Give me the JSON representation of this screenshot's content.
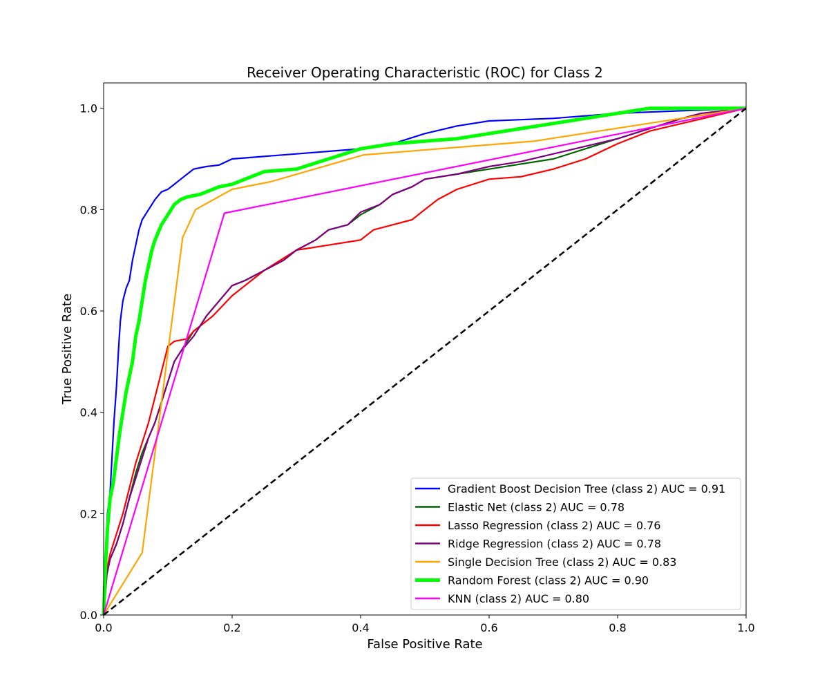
{
  "chart_data": {
    "type": "line",
    "title": "Receiver Operating Characteristic (ROC) for Class 2",
    "xlabel": "False Positive Rate",
    "ylabel": "True Positive Rate",
    "xlim": [
      0.0,
      1.0
    ],
    "ylim": [
      0.0,
      1.05
    ],
    "xticks": [
      "0.0",
      "0.2",
      "0.4",
      "0.6",
      "0.8",
      "1.0"
    ],
    "yticks": [
      "0.0",
      "0.2",
      "0.4",
      "0.6",
      "0.8",
      "1.0"
    ],
    "grid": false,
    "legend_position": "lower-right",
    "series": [
      {
        "name": "Gradient Boost Decision Tree (class 2) AUC = 0.91",
        "color": "#0000ff",
        "x": [
          0,
          0.003,
          0.006,
          0.01,
          0.013,
          0.016,
          0.02,
          0.023,
          0.026,
          0.03,
          0.035,
          0.04,
          0.045,
          0.05,
          0.055,
          0.06,
          0.065,
          0.07,
          0.075,
          0.08,
          0.09,
          0.1,
          0.11,
          0.12,
          0.13,
          0.14,
          0.16,
          0.18,
          0.2,
          0.25,
          0.3,
          0.35,
          0.4,
          0.45,
          0.5,
          0.55,
          0.6,
          0.7,
          0.8,
          0.9,
          1.0
        ],
        "y": [
          0,
          0.12,
          0.2,
          0.24,
          0.31,
          0.38,
          0.45,
          0.52,
          0.58,
          0.62,
          0.645,
          0.66,
          0.7,
          0.73,
          0.76,
          0.78,
          0.79,
          0.8,
          0.81,
          0.82,
          0.835,
          0.84,
          0.85,
          0.86,
          0.87,
          0.88,
          0.885,
          0.888,
          0.9,
          0.905,
          0.91,
          0.915,
          0.92,
          0.93,
          0.95,
          0.965,
          0.975,
          0.98,
          0.99,
          0.995,
          1.0
        ]
      },
      {
        "name": "Elastic Net (class 2) AUC = 0.78",
        "color": "#006400",
        "x": [
          0,
          0.005,
          0.01,
          0.02,
          0.03,
          0.04,
          0.05,
          0.06,
          0.07,
          0.08,
          0.09,
          0.1,
          0.11,
          0.12,
          0.13,
          0.14,
          0.15,
          0.16,
          0.18,
          0.2,
          0.22,
          0.25,
          0.28,
          0.3,
          0.33,
          0.35,
          0.38,
          0.4,
          0.43,
          0.45,
          0.48,
          0.5,
          0.55,
          0.6,
          0.65,
          0.7,
          0.75,
          0.8,
          0.85,
          0.9,
          0.95,
          1.0
        ],
        "y": [
          0,
          0.08,
          0.11,
          0.14,
          0.18,
          0.23,
          0.28,
          0.32,
          0.35,
          0.38,
          0.42,
          0.46,
          0.5,
          0.52,
          0.54,
          0.56,
          0.57,
          0.59,
          0.62,
          0.65,
          0.66,
          0.68,
          0.7,
          0.72,
          0.74,
          0.76,
          0.77,
          0.79,
          0.81,
          0.83,
          0.845,
          0.86,
          0.87,
          0.88,
          0.89,
          0.9,
          0.92,
          0.94,
          0.96,
          0.98,
          0.99,
          1.0
        ]
      },
      {
        "name": "Lasso Regression (class 2) AUC = 0.76",
        "color": "#ff0000",
        "x": [
          0,
          0.005,
          0.01,
          0.02,
          0.03,
          0.04,
          0.05,
          0.06,
          0.07,
          0.08,
          0.09,
          0.1,
          0.11,
          0.13,
          0.14,
          0.15,
          0.17,
          0.2,
          0.25,
          0.3,
          0.35,
          0.4,
          0.42,
          0.45,
          0.48,
          0.5,
          0.52,
          0.55,
          0.6,
          0.65,
          0.7,
          0.75,
          0.8,
          0.85,
          0.9,
          0.95,
          1.0
        ],
        "y": [
          0,
          0.09,
          0.12,
          0.16,
          0.2,
          0.25,
          0.3,
          0.34,
          0.38,
          0.43,
          0.48,
          0.53,
          0.54,
          0.545,
          0.56,
          0.57,
          0.59,
          0.63,
          0.68,
          0.72,
          0.73,
          0.74,
          0.76,
          0.77,
          0.78,
          0.8,
          0.82,
          0.84,
          0.86,
          0.865,
          0.88,
          0.9,
          0.93,
          0.955,
          0.97,
          0.985,
          1.0
        ]
      },
      {
        "name": "Ridge Regression (class 2) AUC = 0.78",
        "color": "#800080",
        "x": [
          0,
          0.005,
          0.01,
          0.02,
          0.03,
          0.04,
          0.05,
          0.06,
          0.07,
          0.08,
          0.09,
          0.1,
          0.11,
          0.12,
          0.13,
          0.14,
          0.15,
          0.16,
          0.18,
          0.2,
          0.22,
          0.25,
          0.28,
          0.3,
          0.33,
          0.35,
          0.38,
          0.4,
          0.43,
          0.45,
          0.48,
          0.5,
          0.55,
          0.6,
          0.65,
          0.7,
          0.75,
          0.8,
          0.85,
          0.9,
          0.93,
          1.0
        ],
        "y": [
          0,
          0.08,
          0.11,
          0.14,
          0.18,
          0.23,
          0.27,
          0.31,
          0.35,
          0.38,
          0.42,
          0.46,
          0.5,
          0.52,
          0.535,
          0.55,
          0.57,
          0.59,
          0.62,
          0.65,
          0.66,
          0.68,
          0.7,
          0.72,
          0.74,
          0.76,
          0.77,
          0.795,
          0.81,
          0.83,
          0.845,
          0.86,
          0.87,
          0.885,
          0.895,
          0.91,
          0.925,
          0.94,
          0.96,
          0.98,
          0.99,
          1.0
        ]
      },
      {
        "name": "Single Decision Tree (class 2) AUC = 0.83",
        "color": "#ffa500",
        "x": [
          0,
          0.06,
          0.123,
          0.143,
          0.2,
          0.26,
          0.405,
          0.67,
          1.0
        ],
        "y": [
          0,
          0.123,
          0.745,
          0.8,
          0.84,
          0.855,
          0.908,
          0.935,
          1.0
        ]
      },
      {
        "name": "Random Forest (class 2) AUC = 0.90",
        "color": "#00ff00",
        "x": [
          0,
          0.003,
          0.006,
          0.01,
          0.015,
          0.02,
          0.025,
          0.03,
          0.035,
          0.04,
          0.045,
          0.05,
          0.055,
          0.06,
          0.065,
          0.07,
          0.075,
          0.08,
          0.09,
          0.1,
          0.11,
          0.12,
          0.13,
          0.15,
          0.18,
          0.2,
          0.23,
          0.25,
          0.3,
          0.35,
          0.4,
          0.45,
          0.5,
          0.55,
          0.6,
          0.65,
          0.7,
          0.75,
          0.8,
          0.85,
          0.9,
          1.0
        ],
        "y": [
          0,
          0.1,
          0.17,
          0.23,
          0.26,
          0.31,
          0.36,
          0.4,
          0.44,
          0.47,
          0.5,
          0.55,
          0.58,
          0.62,
          0.66,
          0.69,
          0.72,
          0.74,
          0.77,
          0.79,
          0.81,
          0.82,
          0.825,
          0.83,
          0.845,
          0.85,
          0.865,
          0.875,
          0.88,
          0.9,
          0.92,
          0.93,
          0.935,
          0.94,
          0.95,
          0.96,
          0.97,
          0.98,
          0.99,
          1.0,
          1.0,
          1.0
        ]
      },
      {
        "name": "KNN (class 2) AUC = 0.80",
        "color": "#ff00ff",
        "x": [
          0,
          0.188,
          1.0
        ],
        "y": [
          0,
          0.793,
          1.0
        ]
      }
    ],
    "reference_line": {
      "x": [
        0,
        1
      ],
      "y": [
        0,
        1
      ],
      "color": "#000000",
      "style": "dashed"
    }
  }
}
